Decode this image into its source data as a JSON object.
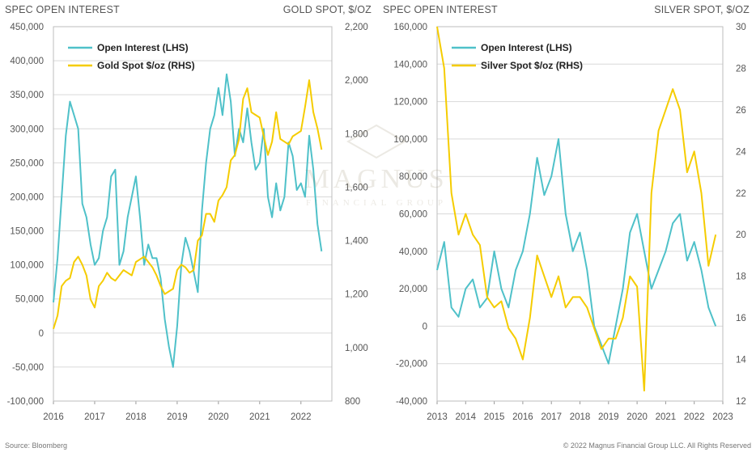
{
  "footer": {
    "source": "Source: Bloomberg",
    "copyright": "© 2022 Magnus Financial Group LLC. All Rights Reserved"
  },
  "watermark": {
    "name": "MAGNUS",
    "tagline": "FINANCIAL GROUP"
  },
  "colors": {
    "open_interest": "#4fc1c9",
    "spot": "#f5cc00",
    "grid": "#d9d9d9"
  },
  "chart_data": [
    {
      "type": "line",
      "title": "",
      "left_axis_label": "SPEC OPEN INTEREST",
      "right_axis_label": "GOLD SPOT, $/OZ",
      "x_tick_labels": [
        "2016",
        "2017",
        "2018",
        "2019",
        "2020",
        "2021",
        "2022"
      ],
      "xlim": [
        2016.0,
        2022.75
      ],
      "ylim": [
        -100000,
        450000
      ],
      "y_tick_labels": [
        "-100,000",
        "-50,000",
        "0",
        "50,000",
        "100,000",
        "150,000",
        "200,000",
        "250,000",
        "300,000",
        "350,000",
        "400,000",
        "450,000"
      ],
      "y2lim": [
        800,
        2200
      ],
      "y2_tick_labels": [
        "800",
        "1,000",
        "1,200",
        "1,400",
        "1,600",
        "1,800",
        "2,000",
        "2,200"
      ],
      "grid": true,
      "legend_position": "top-left",
      "series": [
        {
          "name": "Open Interest (LHS)",
          "axis": "left",
          "x": [
            2016.0,
            2016.1,
            2016.2,
            2016.3,
            2016.4,
            2016.5,
            2016.6,
            2016.7,
            2016.8,
            2016.9,
            2017.0,
            2017.1,
            2017.2,
            2017.3,
            2017.4,
            2017.5,
            2017.6,
            2017.7,
            2017.8,
            2017.9,
            2018.0,
            2018.1,
            2018.2,
            2018.3,
            2018.4,
            2018.5,
            2018.6,
            2018.7,
            2018.8,
            2018.9,
            2019.0,
            2019.1,
            2019.2,
            2019.3,
            2019.4,
            2019.5,
            2019.6,
            2019.7,
            2019.8,
            2019.9,
            2020.0,
            2020.1,
            2020.2,
            2020.3,
            2020.4,
            2020.5,
            2020.6,
            2020.7,
            2020.8,
            2020.9,
            2021.0,
            2021.1,
            2021.2,
            2021.3,
            2021.4,
            2021.5,
            2021.6,
            2021.7,
            2021.8,
            2021.9,
            2022.0,
            2022.1,
            2022.2,
            2022.3,
            2022.4,
            2022.5
          ],
          "values": [
            45000,
            110000,
            200000,
            290000,
            340000,
            320000,
            300000,
            190000,
            170000,
            130000,
            100000,
            110000,
            150000,
            170000,
            230000,
            240000,
            100000,
            120000,
            170000,
            200000,
            230000,
            170000,
            100000,
            130000,
            110000,
            110000,
            80000,
            20000,
            -20000,
            -50000,
            10000,
            100000,
            140000,
            120000,
            90000,
            60000,
            180000,
            250000,
            300000,
            320000,
            360000,
            320000,
            380000,
            340000,
            260000,
            300000,
            280000,
            330000,
            280000,
            240000,
            250000,
            300000,
            200000,
            170000,
            220000,
            180000,
            200000,
            280000,
            260000,
            210000,
            220000,
            200000,
            290000,
            240000,
            160000,
            120000
          ]
        },
        {
          "name": "Gold Spot $/oz (RHS)",
          "axis": "right",
          "x": [
            2016.0,
            2016.1,
            2016.2,
            2016.3,
            2016.4,
            2016.5,
            2016.6,
            2016.7,
            2016.8,
            2016.9,
            2017.0,
            2017.1,
            2017.2,
            2017.3,
            2017.4,
            2017.5,
            2017.6,
            2017.7,
            2017.8,
            2017.9,
            2018.0,
            2018.1,
            2018.2,
            2018.3,
            2018.4,
            2018.5,
            2018.6,
            2018.7,
            2018.8,
            2018.9,
            2019.0,
            2019.1,
            2019.2,
            2019.3,
            2019.4,
            2019.5,
            2019.6,
            2019.7,
            2019.8,
            2019.9,
            2020.0,
            2020.1,
            2020.2,
            2020.3,
            2020.4,
            2020.5,
            2020.6,
            2020.7,
            2020.8,
            2020.9,
            2021.0,
            2021.1,
            2021.2,
            2021.3,
            2021.4,
            2021.5,
            2021.6,
            2021.7,
            2021.8,
            2021.9,
            2022.0,
            2022.1,
            2022.2,
            2022.3,
            2022.4,
            2022.5
          ],
          "values": [
            1070,
            1120,
            1230,
            1250,
            1260,
            1320,
            1340,
            1310,
            1270,
            1180,
            1150,
            1230,
            1250,
            1280,
            1260,
            1250,
            1270,
            1290,
            1280,
            1270,
            1320,
            1330,
            1340,
            1320,
            1300,
            1270,
            1230,
            1200,
            1210,
            1220,
            1290,
            1310,
            1300,
            1280,
            1290,
            1400,
            1420,
            1500,
            1500,
            1470,
            1550,
            1570,
            1600,
            1700,
            1720,
            1780,
            1930,
            1970,
            1880,
            1870,
            1860,
            1790,
            1720,
            1770,
            1880,
            1780,
            1770,
            1760,
            1790,
            1800,
            1810,
            1900,
            2000,
            1880,
            1820,
            1740
          ]
        }
      ]
    },
    {
      "type": "line",
      "title": "",
      "left_axis_label": "SPEC OPEN INTEREST",
      "right_axis_label": "SILVER SPOT, $/OZ",
      "x_tick_labels": [
        "2013",
        "2014",
        "2015",
        "2016",
        "2017",
        "2018",
        "2019",
        "2020",
        "2021",
        "2022",
        "2023"
      ],
      "xlim": [
        2013.0,
        2023.0
      ],
      "ylim": [
        -40000,
        160000
      ],
      "y_tick_labels": [
        "-40,000",
        "-20,000",
        "0",
        "20,000",
        "40,000",
        "60,000",
        "80,000",
        "100,000",
        "120,000",
        "140,000",
        "160,000"
      ],
      "y2lim": [
        12,
        30
      ],
      "y2_tick_labels": [
        "12",
        "14",
        "16",
        "18",
        "20",
        "22",
        "24",
        "26",
        "28",
        "30"
      ],
      "grid": true,
      "legend_position": "top-left",
      "series": [
        {
          "name": "Open Interest (LHS)",
          "axis": "left",
          "x": [
            2013.0,
            2013.25,
            2013.5,
            2013.75,
            2014.0,
            2014.25,
            2014.5,
            2014.75,
            2015.0,
            2015.25,
            2015.5,
            2015.75,
            2016.0,
            2016.25,
            2016.5,
            2016.75,
            2017.0,
            2017.25,
            2017.5,
            2017.75,
            2018.0,
            2018.25,
            2018.5,
            2018.75,
            2019.0,
            2019.25,
            2019.5,
            2019.75,
            2020.0,
            2020.25,
            2020.5,
            2020.75,
            2021.0,
            2021.25,
            2021.5,
            2021.75,
            2022.0,
            2022.25,
            2022.5,
            2022.75
          ],
          "values": [
            30000,
            45000,
            10000,
            5000,
            20000,
            25000,
            10000,
            15000,
            40000,
            20000,
            10000,
            30000,
            40000,
            60000,
            90000,
            70000,
            80000,
            100000,
            60000,
            40000,
            50000,
            30000,
            0,
            -10000,
            -20000,
            0,
            20000,
            50000,
            60000,
            40000,
            20000,
            30000,
            40000,
            55000,
            60000,
            35000,
            45000,
            30000,
            10000,
            0
          ]
        },
        {
          "name": "Silver Spot $/oz (RHS)",
          "axis": "right",
          "x": [
            2013.0,
            2013.25,
            2013.5,
            2013.75,
            2014.0,
            2014.25,
            2014.5,
            2014.75,
            2015.0,
            2015.25,
            2015.5,
            2015.75,
            2016.0,
            2016.25,
            2016.5,
            2016.75,
            2017.0,
            2017.25,
            2017.5,
            2017.75,
            2018.0,
            2018.25,
            2018.5,
            2018.75,
            2019.0,
            2019.25,
            2019.5,
            2019.75,
            2020.0,
            2020.25,
            2020.5,
            2020.75,
            2021.0,
            2021.25,
            2021.5,
            2021.75,
            2022.0,
            2022.25,
            2022.5,
            2022.75
          ],
          "values": [
            30,
            28,
            22,
            20,
            21,
            20,
            19.5,
            17,
            16.5,
            16.8,
            15.5,
            15,
            14,
            16,
            19,
            18,
            17,
            18,
            16.5,
            17,
            17,
            16.5,
            15.5,
            14.5,
            15,
            15,
            16,
            18,
            17.5,
            12.5,
            22,
            25,
            26,
            27,
            26,
            23,
            24,
            22,
            18.5,
            20
          ]
        }
      ]
    }
  ]
}
